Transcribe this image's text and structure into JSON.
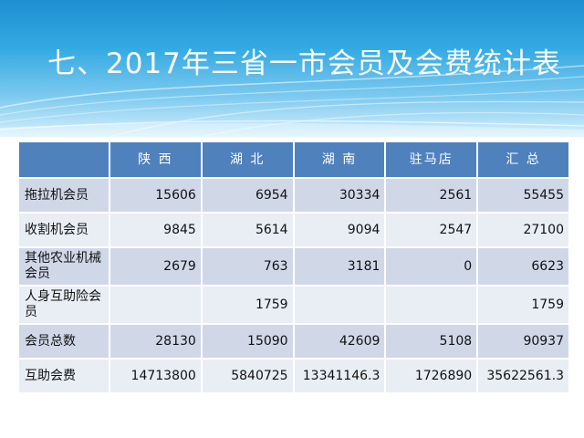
{
  "title": "七、2017年三省一市会员及会费统计表",
  "table": {
    "corner": "",
    "columns": [
      "陕 西",
      "湖 北",
      "湖 南",
      "驻马店",
      "汇 总"
    ],
    "rows": [
      {
        "label": "拖拉机会员",
        "cells": [
          "15606",
          "6954",
          "30334",
          "2561",
          "55455"
        ]
      },
      {
        "label": "收割机会员",
        "cells": [
          "9845",
          "5614",
          "9094",
          "2547",
          "27100"
        ]
      },
      {
        "label": "其他农业机械会员",
        "cells": [
          "2679",
          "763",
          "3181",
          "0",
          "6623"
        ]
      },
      {
        "label": "人身互助险会员",
        "cells": [
          "",
          "1759",
          "",
          "",
          "1759"
        ]
      },
      {
        "label": "会员总数",
        "cells": [
          "28130",
          "15090",
          "42609",
          "5108",
          "90937"
        ]
      },
      {
        "label": "互助会费",
        "cells": [
          "14713800",
          "5840725",
          "13341146.3",
          "1726890",
          "35622561.3"
        ]
      }
    ]
  },
  "colors": {
    "banner_top": "#1e8fd0",
    "banner_bottom": "#d8f0fb",
    "header_fill": "#4f81bd",
    "row_dark": "#d0d8e8",
    "row_light": "#e9edf4"
  }
}
